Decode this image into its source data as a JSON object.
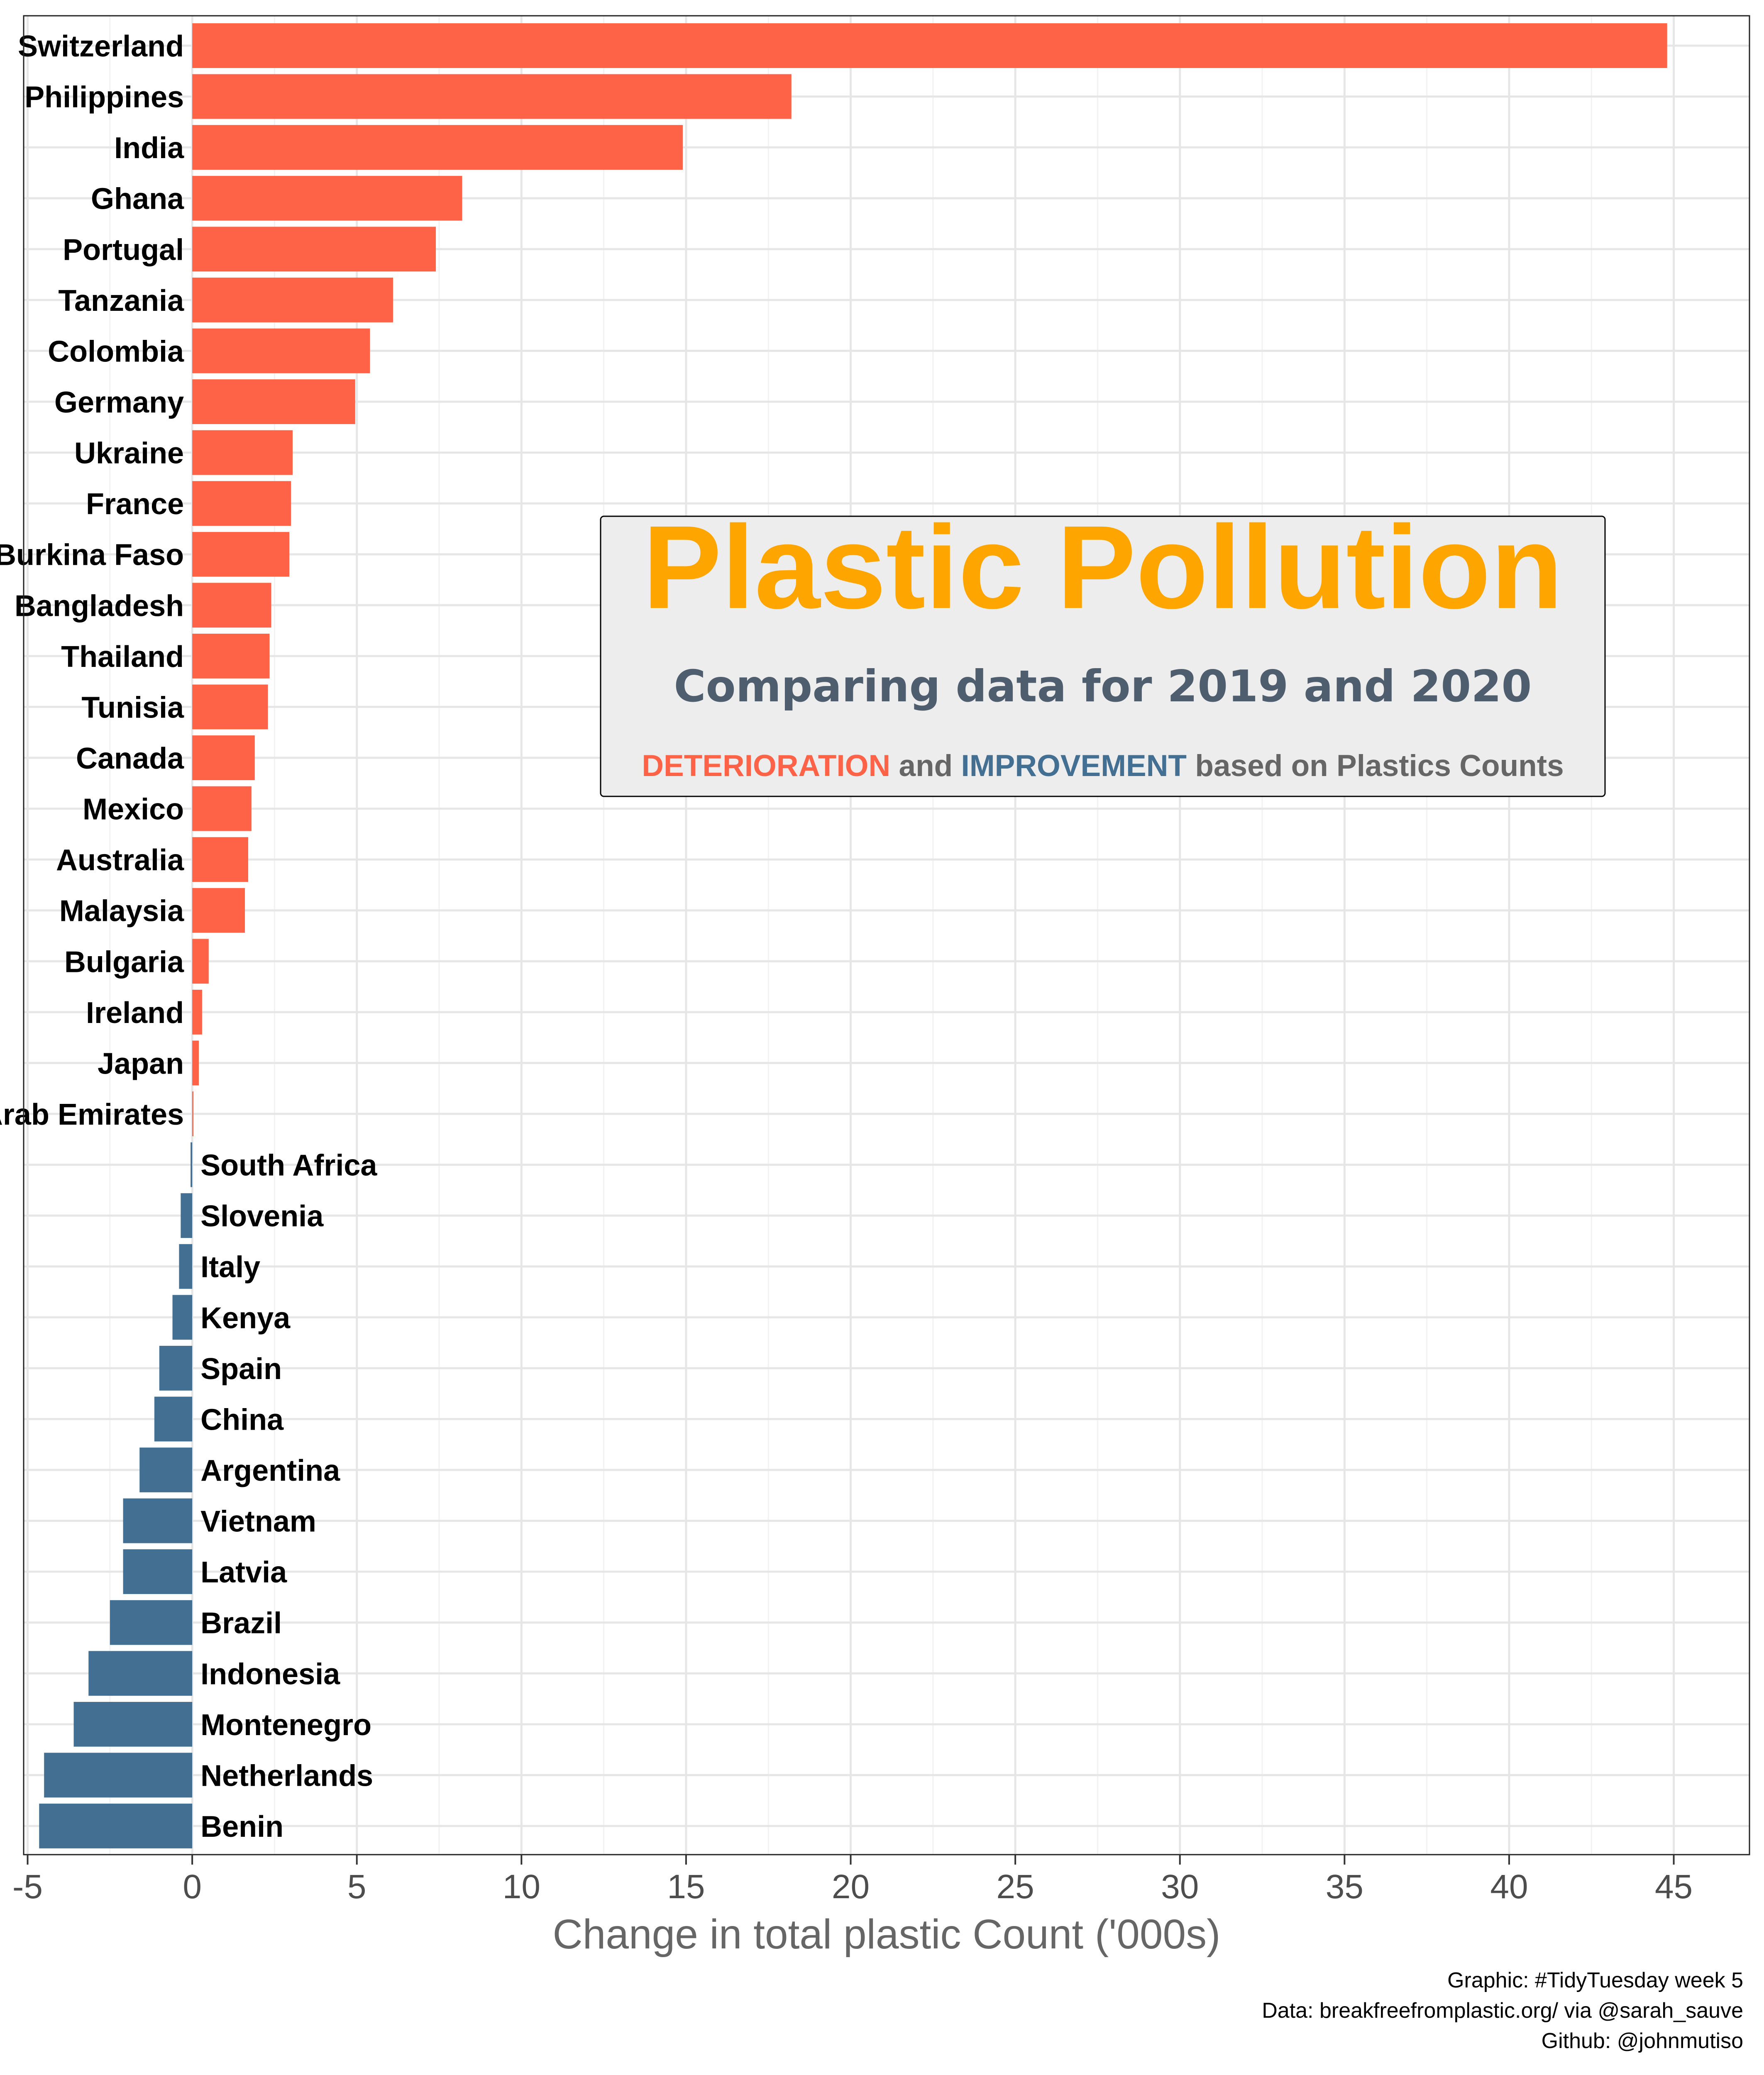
{
  "chart_data": {
    "type": "bar",
    "orientation": "horizontal",
    "xlabel": "Change in total plastic Count ('000s)",
    "ylabel": "",
    "xlim": [
      -5,
      47.3
    ],
    "xticks": [
      -5,
      0,
      5,
      10,
      15,
      20,
      25,
      30,
      35,
      40,
      45
    ],
    "grid": true,
    "colors": {
      "deterioration": "#FF6347",
      "improvement": "#436F92"
    },
    "categories": [
      "Switzerland",
      "Philippines",
      "India",
      "Ghana",
      "Portugal",
      "Tanzania",
      "Colombia",
      "Germany",
      "Ukraine",
      "France",
      "Burkina Faso",
      "Bangladesh",
      "Thailand",
      "Tunisia",
      "Canada",
      "Mexico",
      "Australia",
      "Malaysia",
      "Bulgaria",
      "Ireland",
      "Japan",
      "United Arab Emirates",
      "South Africa",
      "Slovenia",
      "Italy",
      "Kenya",
      "Spain",
      "China",
      "Argentina",
      "Vietnam",
      "Latvia",
      "Brazil",
      "Indonesia",
      "Montenegro",
      "Netherlands",
      "Benin"
    ],
    "values": [
      44.8,
      18.2,
      14.9,
      8.2,
      7.4,
      6.1,
      5.4,
      4.95,
      3.05,
      3.0,
      2.95,
      2.4,
      2.35,
      2.3,
      1.9,
      1.8,
      1.7,
      1.6,
      0.5,
      0.3,
      0.2,
      0.02,
      -0.05,
      -0.35,
      -0.4,
      -0.6,
      -1.0,
      -1.15,
      -1.6,
      -2.1,
      -2.1,
      -2.5,
      -3.15,
      -3.6,
      -4.5,
      -4.65
    ]
  },
  "title_box": {
    "title": "Plastic Pollution",
    "subtitle": "Comparing data for 2019 and 2020",
    "legend_deterioration": "DETERIORATION",
    "legend_and": " and ",
    "legend_improvement": "IMPROVEMENT",
    "legend_rest": " based on Plastics Counts",
    "title_color": "#FFA500",
    "subtitle_color": "#4F5E6E",
    "box_fill": "#EDEDED"
  },
  "credits": {
    "line1": "Graphic: #TidyTuesday week 5",
    "line2": "Data: breakfreefromplastic.org/ via @sarah_sauve",
    "line3": "Github: @johnmutiso"
  }
}
